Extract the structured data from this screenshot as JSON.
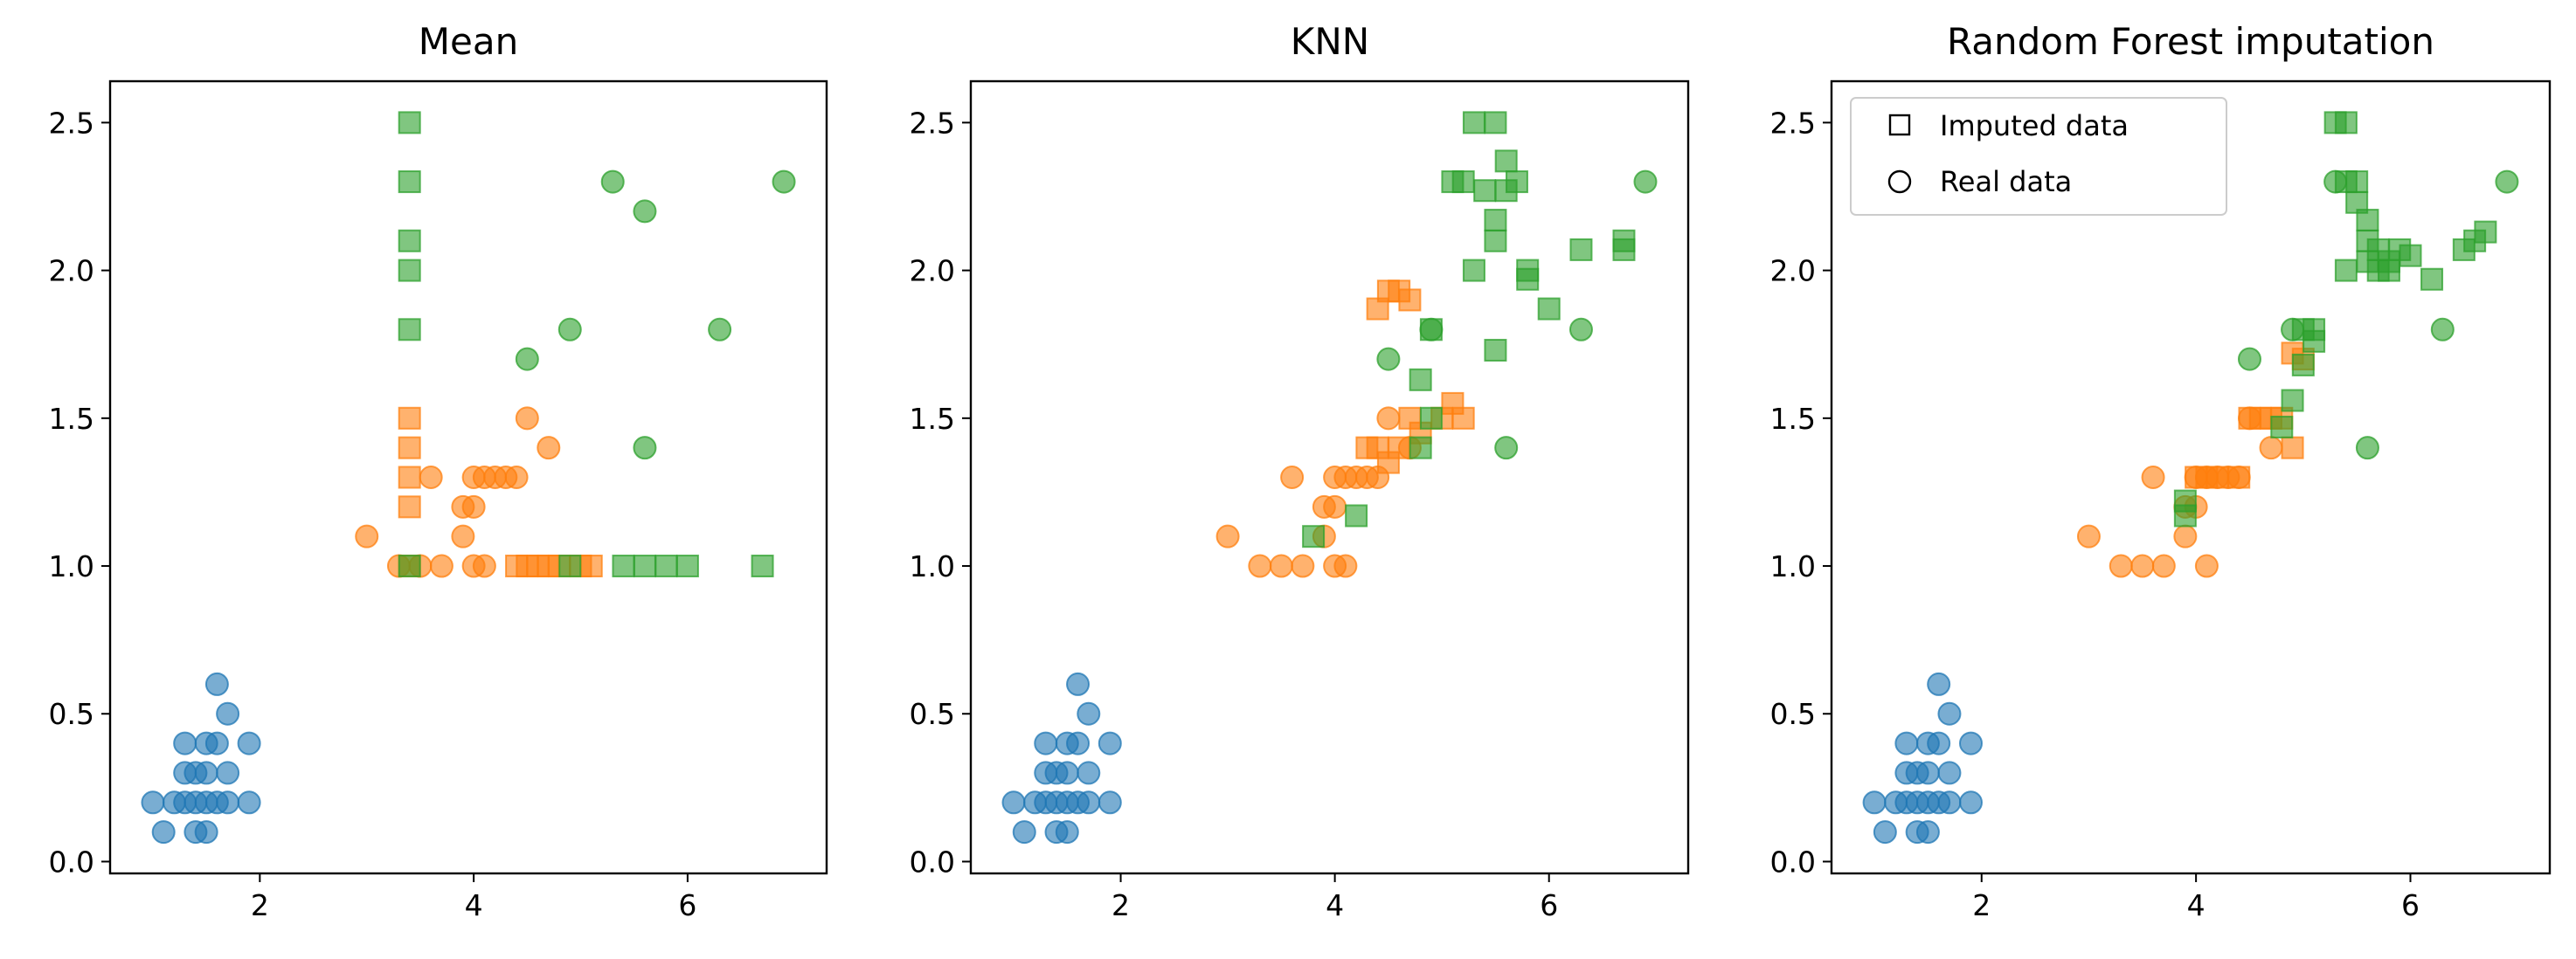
{
  "colors": {
    "blue": "#1f77b4",
    "orange": "#ff7f0e",
    "green": "#2ca02c"
  },
  "chart_data": [
    {
      "type": "scatter",
      "title": "Mean",
      "xlim": [
        0.6,
        7.3
      ],
      "ylim": [
        -0.04,
        2.64
      ],
      "xticks": [
        "2",
        "4",
        "6"
      ],
      "yticks": [
        "0.0",
        "0.5",
        "1.0",
        "1.5",
        "2.0",
        "2.5"
      ],
      "series": [
        {
          "class": "blue",
          "marker": "circle",
          "points": [
            [
              1.0,
              0.2
            ],
            [
              1.2,
              0.2
            ],
            [
              1.1,
              0.1
            ],
            [
              1.3,
              0.2
            ],
            [
              1.3,
              0.3
            ],
            [
              1.3,
              0.4
            ],
            [
              1.4,
              0.2
            ],
            [
              1.4,
              0.3
            ],
            [
              1.4,
              0.1
            ],
            [
              1.5,
              0.2
            ],
            [
              1.5,
              0.1
            ],
            [
              1.5,
              0.4
            ],
            [
              1.5,
              0.3
            ],
            [
              1.6,
              0.2
            ],
            [
              1.6,
              0.4
            ],
            [
              1.6,
              0.6
            ],
            [
              1.7,
              0.2
            ],
            [
              1.7,
              0.3
            ],
            [
              1.7,
              0.5
            ],
            [
              1.9,
              0.2
            ],
            [
              1.9,
              0.4
            ]
          ]
        },
        {
          "class": "orange",
          "marker": "circle",
          "points": [
            [
              3.0,
              1.1
            ],
            [
              3.3,
              1.0
            ],
            [
              3.5,
              1.0
            ],
            [
              3.6,
              1.3
            ],
            [
              3.7,
              1.0
            ],
            [
              3.9,
              1.1
            ],
            [
              3.9,
              1.2
            ],
            [
              4.0,
              1.0
            ],
            [
              4.0,
              1.3
            ],
            [
              4.0,
              1.2
            ],
            [
              4.1,
              1.3
            ],
            [
              4.1,
              1.0
            ],
            [
              4.2,
              1.3
            ],
            [
              4.3,
              1.3
            ],
            [
              4.4,
              1.3
            ],
            [
              4.5,
              1.5
            ],
            [
              4.7,
              1.4
            ]
          ]
        },
        {
          "class": "orange",
          "marker": "square",
          "points": [
            [
              3.4,
              1.0
            ],
            [
              3.4,
              1.2
            ],
            [
              3.4,
              1.3
            ],
            [
              3.4,
              1.4
            ],
            [
              3.4,
              1.5
            ],
            [
              4.4,
              1.0
            ],
            [
              4.5,
              1.0
            ],
            [
              4.6,
              1.0
            ],
            [
              4.7,
              1.0
            ],
            [
              4.8,
              1.0
            ],
            [
              5.0,
              1.0
            ],
            [
              5.1,
              1.0
            ]
          ]
        },
        {
          "class": "green",
          "marker": "circle",
          "points": [
            [
              4.5,
              1.7
            ],
            [
              4.9,
              1.8
            ],
            [
              5.3,
              2.3
            ],
            [
              5.6,
              2.2
            ],
            [
              5.6,
              1.4
            ],
            [
              6.3,
              1.8
            ],
            [
              6.9,
              2.3
            ]
          ]
        },
        {
          "class": "green",
          "marker": "square",
          "points": [
            [
              3.4,
              1.0
            ],
            [
              3.4,
              1.8
            ],
            [
              3.4,
              2.0
            ],
            [
              3.4,
              2.1
            ],
            [
              3.4,
              2.3
            ],
            [
              3.4,
              2.5
            ],
            [
              4.9,
              1.0
            ],
            [
              5.4,
              1.0
            ],
            [
              5.6,
              1.0
            ],
            [
              5.8,
              1.0
            ],
            [
              6.0,
              1.0
            ],
            [
              6.7,
              1.0
            ]
          ]
        }
      ]
    },
    {
      "type": "scatter",
      "title": "KNN",
      "xlim": [
        0.6,
        7.3
      ],
      "ylim": [
        -0.04,
        2.64
      ],
      "xticks": [
        "2",
        "4",
        "6"
      ],
      "yticks": [
        "0.0",
        "0.5",
        "1.0",
        "1.5",
        "2.0",
        "2.5"
      ],
      "series": [
        {
          "class": "blue",
          "marker": "circle",
          "points": [
            [
              1.0,
              0.2
            ],
            [
              1.2,
              0.2
            ],
            [
              1.1,
              0.1
            ],
            [
              1.3,
              0.2
            ],
            [
              1.3,
              0.3
            ],
            [
              1.3,
              0.4
            ],
            [
              1.4,
              0.2
            ],
            [
              1.4,
              0.3
            ],
            [
              1.4,
              0.1
            ],
            [
              1.5,
              0.2
            ],
            [
              1.5,
              0.1
            ],
            [
              1.5,
              0.4
            ],
            [
              1.5,
              0.3
            ],
            [
              1.6,
              0.2
            ],
            [
              1.6,
              0.4
            ],
            [
              1.6,
              0.6
            ],
            [
              1.7,
              0.2
            ],
            [
              1.7,
              0.3
            ],
            [
              1.7,
              0.5
            ],
            [
              1.9,
              0.2
            ],
            [
              1.9,
              0.4
            ]
          ]
        },
        {
          "class": "orange",
          "marker": "circle",
          "points": [
            [
              3.0,
              1.1
            ],
            [
              3.3,
              1.0
            ],
            [
              3.5,
              1.0
            ],
            [
              3.6,
              1.3
            ],
            [
              3.7,
              1.0
            ],
            [
              3.9,
              1.1
            ],
            [
              3.9,
              1.2
            ],
            [
              4.0,
              1.0
            ],
            [
              4.0,
              1.3
            ],
            [
              4.0,
              1.2
            ],
            [
              4.1,
              1.3
            ],
            [
              4.1,
              1.0
            ],
            [
              4.2,
              1.3
            ],
            [
              4.3,
              1.3
            ],
            [
              4.4,
              1.3
            ],
            [
              4.5,
              1.5
            ],
            [
              4.7,
              1.4
            ]
          ]
        },
        {
          "class": "orange",
          "marker": "square",
          "points": [
            [
              4.3,
              1.4
            ],
            [
              4.4,
              1.4
            ],
            [
              4.5,
              1.35
            ],
            [
              4.6,
              1.4
            ],
            [
              4.7,
              1.5
            ],
            [
              4.8,
              1.45
            ],
            [
              5.0,
              1.5
            ],
            [
              5.1,
              1.55
            ],
            [
              5.2,
              1.5
            ],
            [
              4.4,
              1.87
            ],
            [
              4.5,
              1.93
            ],
            [
              4.6,
              1.93
            ],
            [
              4.7,
              1.9
            ]
          ]
        },
        {
          "class": "green",
          "marker": "circle",
          "points": [
            [
              4.5,
              1.7
            ],
            [
              4.9,
              1.8
            ],
            [
              5.6,
              1.4
            ],
            [
              6.3,
              1.8
            ],
            [
              6.9,
              2.3
            ]
          ]
        },
        {
          "class": "green",
          "marker": "square",
          "points": [
            [
              3.8,
              1.1
            ],
            [
              4.2,
              1.17
            ],
            [
              4.8,
              1.4
            ],
            [
              4.8,
              1.63
            ],
            [
              4.9,
              1.8
            ],
            [
              4.9,
              1.5
            ],
            [
              5.1,
              2.3
            ],
            [
              5.2,
              2.3
            ],
            [
              5.3,
              2.0
            ],
            [
              5.3,
              2.5
            ],
            [
              5.4,
              2.27
            ],
            [
              5.5,
              2.5
            ],
            [
              5.5,
              2.1
            ],
            [
              5.5,
              2.17
            ],
            [
              5.6,
              2.37
            ],
            [
              5.5,
              1.73
            ],
            [
              5.6,
              2.27
            ],
            [
              5.7,
              2.3
            ],
            [
              5.8,
              2.0
            ],
            [
              5.8,
              1.97
            ],
            [
              6.0,
              1.87
            ],
            [
              6.3,
              2.07
            ],
            [
              6.7,
              2.1
            ],
            [
              6.7,
              2.07
            ]
          ]
        }
      ]
    },
    {
      "type": "scatter",
      "title": "Random Forest imputation",
      "xlim": [
        0.6,
        7.3
      ],
      "ylim": [
        -0.04,
        2.64
      ],
      "xticks": [
        "2",
        "4",
        "6"
      ],
      "yticks": [
        "0.0",
        "0.5",
        "1.0",
        "1.5",
        "2.0",
        "2.5"
      ],
      "legend": {
        "placement": "upper-left",
        "entries": [
          {
            "marker": "square",
            "label": "Imputed data"
          },
          {
            "marker": "circle",
            "label": "Real data"
          }
        ]
      },
      "series": [
        {
          "class": "blue",
          "marker": "circle",
          "points": [
            [
              1.0,
              0.2
            ],
            [
              1.2,
              0.2
            ],
            [
              1.1,
              0.1
            ],
            [
              1.3,
              0.2
            ],
            [
              1.3,
              0.3
            ],
            [
              1.3,
              0.4
            ],
            [
              1.4,
              0.2
            ],
            [
              1.4,
              0.3
            ],
            [
              1.4,
              0.1
            ],
            [
              1.5,
              0.2
            ],
            [
              1.5,
              0.1
            ],
            [
              1.5,
              0.4
            ],
            [
              1.5,
              0.3
            ],
            [
              1.6,
              0.2
            ],
            [
              1.6,
              0.4
            ],
            [
              1.6,
              0.6
            ],
            [
              1.7,
              0.2
            ],
            [
              1.7,
              0.3
            ],
            [
              1.7,
              0.5
            ],
            [
              1.9,
              0.2
            ],
            [
              1.9,
              0.4
            ]
          ]
        },
        {
          "class": "orange",
          "marker": "circle",
          "points": [
            [
              3.0,
              1.1
            ],
            [
              3.3,
              1.0
            ],
            [
              3.5,
              1.0
            ],
            [
              3.6,
              1.3
            ],
            [
              3.7,
              1.0
            ],
            [
              3.9,
              1.1
            ],
            [
              3.9,
              1.2
            ],
            [
              4.0,
              1.3
            ],
            [
              4.0,
              1.2
            ],
            [
              4.1,
              1.3
            ],
            [
              4.1,
              1.0
            ],
            [
              4.2,
              1.3
            ],
            [
              4.3,
              1.3
            ],
            [
              4.4,
              1.3
            ],
            [
              4.5,
              1.5
            ],
            [
              4.7,
              1.4
            ]
          ]
        },
        {
          "class": "orange",
          "marker": "square",
          "points": [
            [
              4.0,
              1.3
            ],
            [
              4.1,
              1.3
            ],
            [
              4.2,
              1.3
            ],
            [
              4.4,
              1.3
            ],
            [
              4.5,
              1.5
            ],
            [
              4.6,
              1.5
            ],
            [
              4.7,
              1.5
            ],
            [
              4.8,
              1.5
            ],
            [
              4.9,
              1.4
            ],
            [
              4.9,
              1.72
            ],
            [
              5.0,
              1.7
            ]
          ]
        },
        {
          "class": "green",
          "marker": "circle",
          "points": [
            [
              4.5,
              1.7
            ],
            [
              4.9,
              1.8
            ],
            [
              5.3,
              2.3
            ],
            [
              5.6,
              1.4
            ],
            [
              6.3,
              1.8
            ],
            [
              6.9,
              2.3
            ]
          ]
        },
        {
          "class": "green",
          "marker": "square",
          "points": [
            [
              3.9,
              1.17
            ],
            [
              3.9,
              1.22
            ],
            [
              4.8,
              1.47
            ],
            [
              4.9,
              1.56
            ],
            [
              5.0,
              1.68
            ],
            [
              5.0,
              1.8
            ],
            [
              5.1,
              1.8
            ],
            [
              5.1,
              1.76
            ],
            [
              5.3,
              2.5
            ],
            [
              5.4,
              2.5
            ],
            [
              5.4,
              2.3
            ],
            [
              5.4,
              2.0
            ],
            [
              5.5,
              2.3
            ],
            [
              5.5,
              2.23
            ],
            [
              5.6,
              2.17
            ],
            [
              5.6,
              2.1
            ],
            [
              5.6,
              2.03
            ],
            [
              5.7,
              2.0
            ],
            [
              5.7,
              2.07
            ],
            [
              5.8,
              2.0
            ],
            [
              5.8,
              2.03
            ],
            [
              5.9,
              2.07
            ],
            [
              6.0,
              2.05
            ],
            [
              6.2,
              1.97
            ],
            [
              6.5,
              2.07
            ],
            [
              6.6,
              2.1
            ],
            [
              6.7,
              2.13
            ]
          ]
        }
      ]
    }
  ]
}
